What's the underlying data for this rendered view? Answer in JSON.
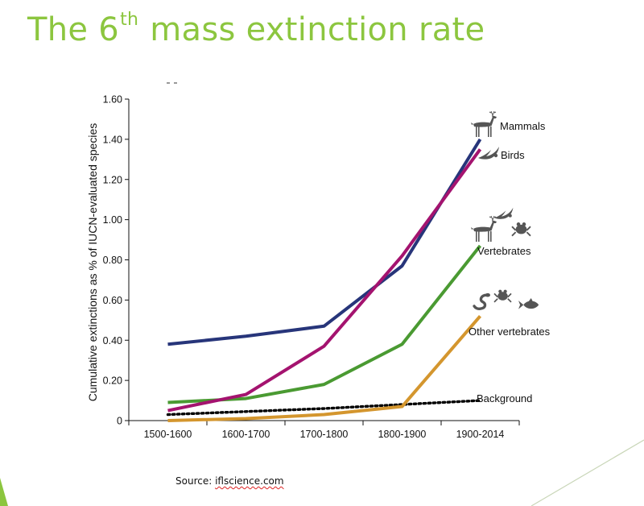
{
  "slide": {
    "title_before": "The 6",
    "title_sup": "th",
    "title_after": " mass extinction rate",
    "source_label": "Source:",
    "source_link": "iflscience.com"
  },
  "colors": {
    "title": "#8cc63f",
    "mammals": "#27357a",
    "birds": "#a4136f",
    "vertebrates": "#4a9a32",
    "other_vertebrates": "#d4962e",
    "background": "#000000",
    "icon": "#555555"
  },
  "chart_data": {
    "type": "line",
    "title": "",
    "xlabel": "",
    "ylabel": "Cumulative extinctions as % of IUCN-evaluated species",
    "categories": [
      "1500-1600",
      "1600-1700",
      "1700-1800",
      "1800-1900",
      "1900-2014"
    ],
    "ylim": [
      0,
      1.6
    ],
    "yticks": [
      "0",
      "0.20",
      "0.40",
      "0.60",
      "0.80",
      "1.00",
      "1.20",
      "1.40",
      "1.60"
    ],
    "grid": false,
    "series": [
      {
        "name": "Mammals",
        "color": "#27357a",
        "style": "solid",
        "icons": [
          "deer-icon"
        ],
        "values": [
          0.38,
          0.42,
          0.47,
          0.77,
          1.4
        ]
      },
      {
        "name": "Birds",
        "color": "#a4136f",
        "style": "solid",
        "icons": [
          "bird-icon"
        ],
        "values": [
          0.05,
          0.13,
          0.37,
          0.82,
          1.35
        ]
      },
      {
        "name": "Vertebrates",
        "color": "#4a9a32",
        "style": "solid",
        "icons": [
          "deer-icon",
          "bird-icon",
          "frog-icon"
        ],
        "values": [
          0.09,
          0.11,
          0.18,
          0.38,
          0.87
        ]
      },
      {
        "name": "Other vertebrates",
        "color": "#d4962e",
        "style": "solid",
        "icons": [
          "snake-icon",
          "frog-icon",
          "fish-icon"
        ],
        "values": [
          0.0,
          0.01,
          0.03,
          0.07,
          0.52
        ]
      },
      {
        "name": "Background",
        "color": "#000000",
        "style": "dotted",
        "icons": [],
        "values": [
          0.03,
          0.045,
          0.06,
          0.08,
          0.1
        ]
      }
    ]
  }
}
